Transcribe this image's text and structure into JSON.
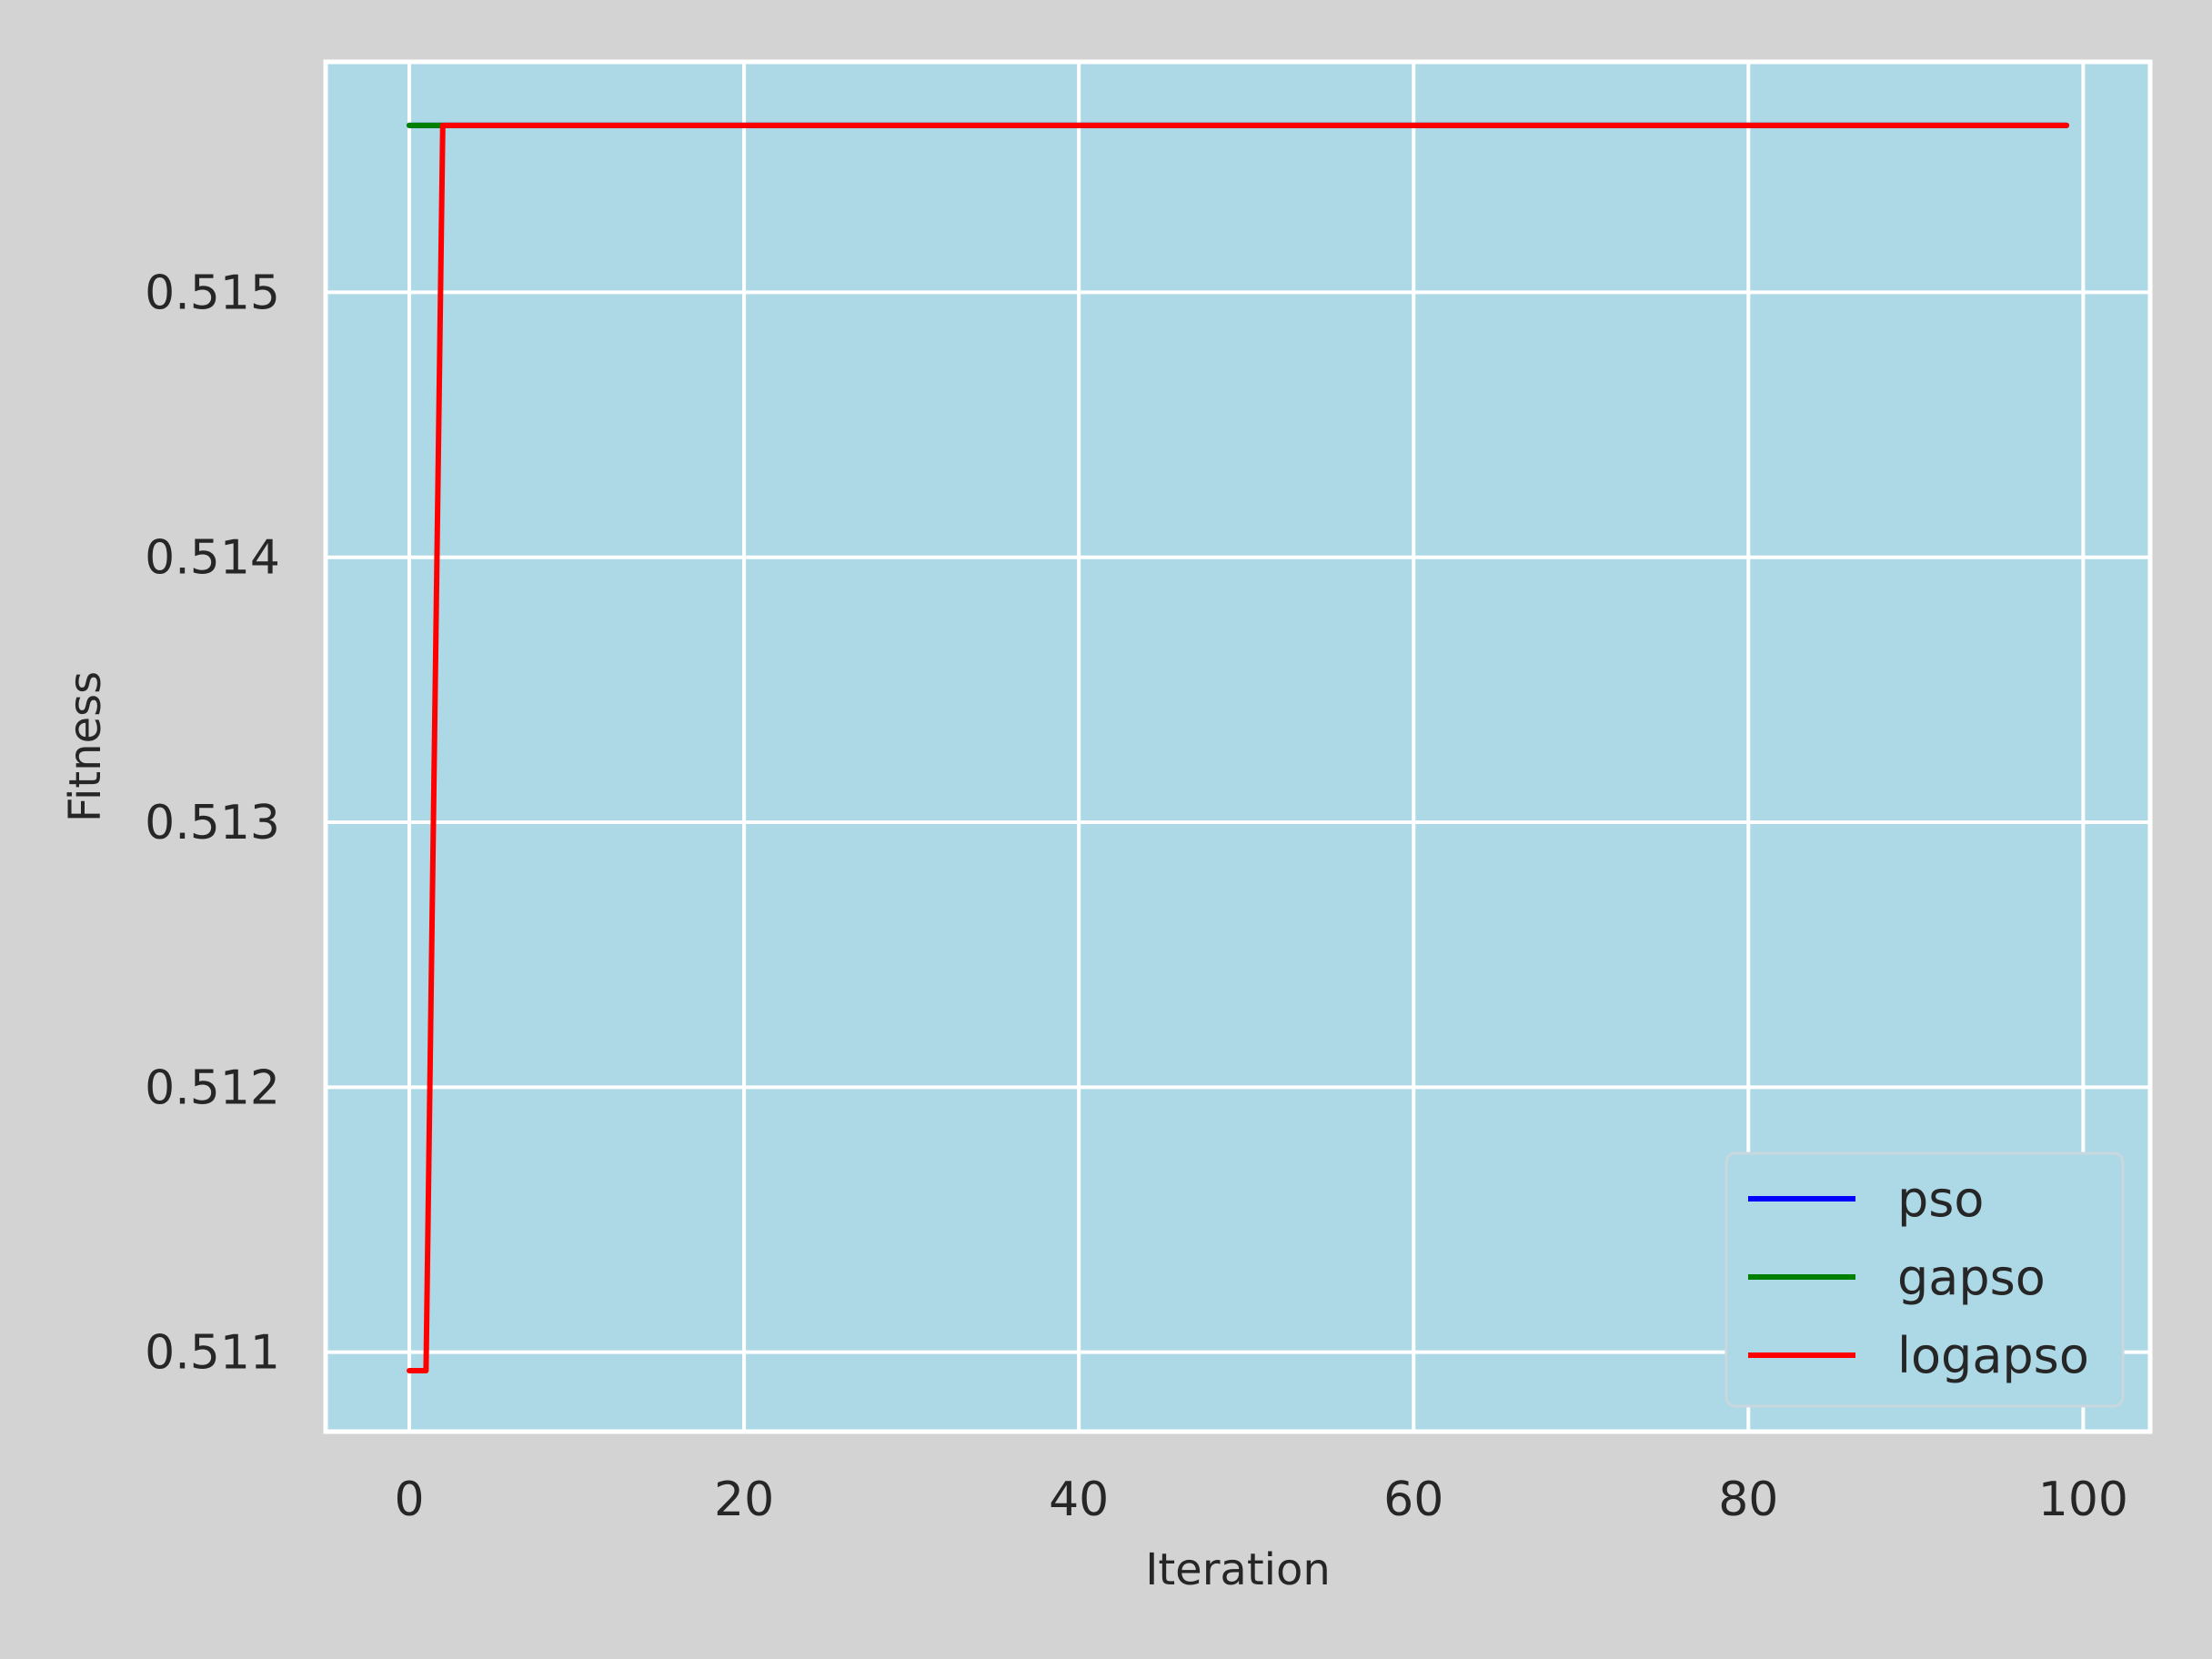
{
  "chart_data": {
    "type": "line",
    "title": "",
    "xlabel": "Iteration",
    "ylabel": "Fitness",
    "xlim": [
      -5,
      104
    ],
    "ylim": [
      0.5107,
      0.51587
    ],
    "xticks": [
      0,
      20,
      40,
      60,
      80,
      100
    ],
    "yticks": [
      0.511,
      0.512,
      0.513,
      0.514,
      0.515
    ],
    "xtick_labels": [
      "0",
      "20",
      "40",
      "60",
      "80",
      "100"
    ],
    "ytick_labels": [
      "0.511",
      "0.512",
      "0.513",
      "0.514",
      "0.515"
    ],
    "grid": true,
    "legend_position": "lower-right",
    "background": "#add8e6",
    "series": [
      {
        "name": "pso",
        "color": "#0000ff",
        "x": [
          0,
          99
        ],
        "y": [
          0.51563,
          0.51563
        ]
      },
      {
        "name": "gapso",
        "color": "#008000",
        "x": [
          0,
          99
        ],
        "y": [
          0.51563,
          0.51563
        ]
      },
      {
        "name": "logapso",
        "color": "#ff0000",
        "x": [
          0,
          1,
          2,
          99
        ],
        "y": [
          0.51093,
          0.51093,
          0.51563,
          0.51563
        ]
      }
    ]
  }
}
